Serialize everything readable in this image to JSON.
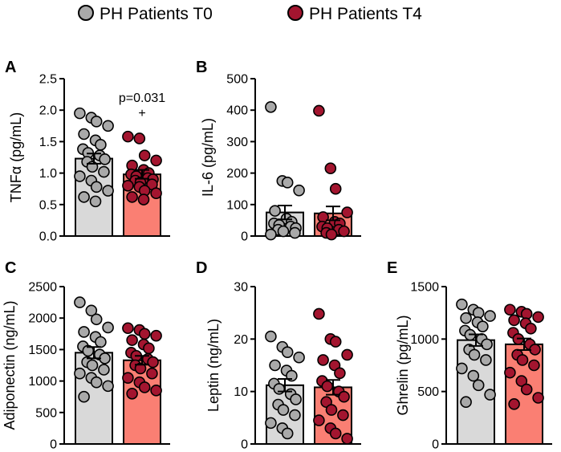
{
  "legend": {
    "entries": [
      {
        "label": "PH Patients T0",
        "color": "#a9a9a9"
      },
      {
        "label": "PH Patients T4",
        "color": "#a3152f"
      }
    ]
  },
  "colors": {
    "bar_t0": "#d9d9d9",
    "bar_t4": "#fa7f73",
    "dot_t0": "#a9a9a9",
    "dot_t4": "#a3152f"
  },
  "chart_data": [
    {
      "panel": "A",
      "type": "bar",
      "ylabel": "TNFα (pg/mL)",
      "ylim": [
        0,
        2.5
      ],
      "yticks": [
        "0.0",
        "0.5",
        "1.0",
        "1.5",
        "2.0",
        "2.5"
      ],
      "series": [
        {
          "name": "PH Patients T0",
          "mean": 1.23,
          "sem": 0.08,
          "points": [
            1.95,
            1.88,
            1.82,
            1.75,
            1.62,
            1.52,
            1.45,
            1.38,
            1.32,
            1.28,
            1.22,
            1.18,
            1.1,
            1.02,
            0.95,
            0.88,
            0.78,
            0.72,
            0.62,
            0.55
          ]
        },
        {
          "name": "PH Patients T4",
          "mean": 0.98,
          "sem": 0.07,
          "points": [
            1.58,
            1.55,
            1.28,
            1.2,
            1.12,
            1.05,
            1.0,
            0.98,
            0.95,
            0.92,
            0.9,
            0.88,
            0.85,
            0.82,
            0.8,
            0.78,
            0.72,
            0.68,
            0.62,
            0.58
          ]
        }
      ],
      "annotation": {
        "text": "p=0.031",
        "symbol": "+"
      }
    },
    {
      "panel": "B",
      "type": "bar",
      "ylabel": "IL-6 (pg/mL)",
      "ylim": [
        0,
        500
      ],
      "yticks": [
        "0",
        "100",
        "200",
        "300",
        "400",
        "500"
      ],
      "series": [
        {
          "name": "PH Patients T0",
          "mean": 75,
          "sem": 22,
          "points": [
            410,
            175,
            170,
            145,
            80,
            55,
            45,
            40,
            35,
            30,
            25,
            20,
            15,
            10,
            5
          ]
        },
        {
          "name": "PH Patients T4",
          "mean": 72,
          "sem": 22,
          "points": [
            398,
            215,
            150,
            75,
            60,
            45,
            40,
            30,
            25,
            20,
            15,
            10,
            5
          ]
        }
      ]
    },
    {
      "panel": "C",
      "type": "bar",
      "ylabel": "Adiponectin (ng/mL)",
      "ylim": [
        0,
        2500
      ],
      "yticks": [
        "0",
        "500",
        "1000",
        "1500",
        "2000",
        "2500"
      ],
      "series": [
        {
          "name": "PH Patients T0",
          "mean": 1450,
          "sem": 90,
          "points": [
            2250,
            2120,
            1980,
            1850,
            1780,
            1700,
            1620,
            1550,
            1480,
            1420,
            1360,
            1300,
            1250,
            1180,
            1120,
            1050,
            980,
            920,
            750
          ]
        },
        {
          "name": "PH Patients T4",
          "mean": 1330,
          "sem": 70,
          "points": [
            1840,
            1810,
            1750,
            1720,
            1650,
            1580,
            1520,
            1450,
            1400,
            1350,
            1300,
            1250,
            1200,
            1120,
            1050,
            980,
            900,
            850,
            800
          ]
        }
      ]
    },
    {
      "panel": "D",
      "type": "bar",
      "ylabel": "Leptin (ng/mL)",
      "ylim": [
        0,
        30
      ],
      "yticks": [
        "0",
        "10",
        "20",
        "30"
      ],
      "series": [
        {
          "name": "PH Patients T0",
          "mean": 11.2,
          "sem": 1.2,
          "points": [
            20.5,
            18.5,
            17.5,
            16.5,
            15.0,
            14.0,
            13.0,
            11.5,
            10.5,
            9.5,
            8.5,
            7.5,
            6.5,
            5.5,
            4.0,
            3.0,
            2.0
          ]
        },
        {
          "name": "PH Patients T4",
          "mean": 10.8,
          "sem": 1.4,
          "points": [
            24.8,
            20.0,
            19.5,
            17.0,
            16.0,
            15.0,
            13.5,
            12.0,
            11.0,
            10.0,
            9.0,
            8.0,
            6.5,
            5.5,
            4.5,
            3.0,
            2.0,
            1.0
          ]
        }
      ]
    },
    {
      "panel": "E",
      "type": "bar",
      "ylabel": "Ghrelin (pg/mL)",
      "ylim": [
        0,
        1500
      ],
      "yticks": [
        "0",
        "500",
        "1000",
        "1500"
      ],
      "series": [
        {
          "name": "PH Patients T0",
          "mean": 990,
          "sem": 55,
          "points": [
            1330,
            1280,
            1250,
            1220,
            1200,
            1160,
            1120,
            1080,
            1040,
            1000,
            950,
            900,
            850,
            800,
            720,
            650,
            560,
            470,
            400
          ]
        },
        {
          "name": "PH Patients T4",
          "mean": 950,
          "sem": 55,
          "points": [
            1280,
            1260,
            1240,
            1210,
            1180,
            1150,
            1100,
            1060,
            1000,
            950,
            900,
            850,
            800,
            750,
            680,
            600,
            520,
            440,
            380
          ]
        }
      ]
    }
  ]
}
